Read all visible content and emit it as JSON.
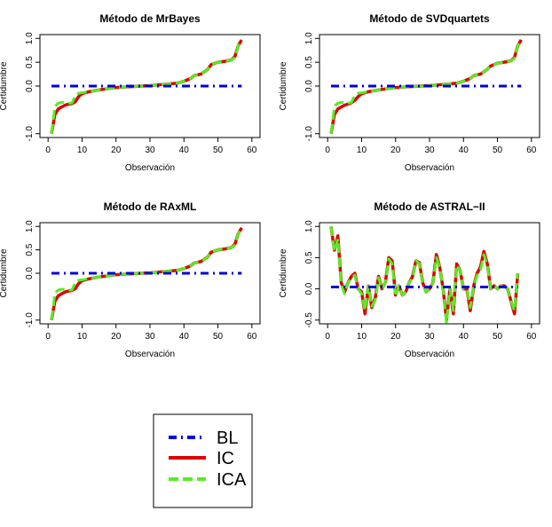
{
  "chart_data": [
    {
      "type": "line",
      "title": "Método de MrBayes",
      "xlabel": "Observación",
      "ylabel": "Certidumbre",
      "xlim": [
        0,
        60
      ],
      "ylim": [
        -1,
        1
      ],
      "xticks": [
        "0",
        "10",
        "20",
        "30",
        "40",
        "50",
        "60"
      ],
      "yticks": [
        "-1.0",
        "0.0",
        "0.5",
        "1.0"
      ],
      "ytick_values": [
        -1,
        0,
        0.5,
        1
      ],
      "series": [
        {
          "name": "BL",
          "x": [
            1,
            57
          ],
          "values": [
            0.0,
            0.0
          ]
        },
        {
          "name": "IC",
          "x": [
            1,
            1.5,
            2,
            3,
            4,
            5,
            6,
            7,
            8,
            9,
            10,
            12,
            15,
            18,
            20,
            25,
            30,
            35,
            38,
            40,
            42,
            43,
            45,
            47,
            48,
            50,
            52,
            54,
            55,
            56,
            57
          ],
          "values": [
            -1.0,
            -0.8,
            -0.6,
            -0.48,
            -0.44,
            -0.4,
            -0.38,
            -0.37,
            -0.33,
            -0.22,
            -0.16,
            -0.12,
            -0.08,
            -0.05,
            -0.03,
            -0.01,
            0.01,
            0.04,
            0.06,
            0.1,
            0.16,
            0.22,
            0.25,
            0.35,
            0.45,
            0.5,
            0.52,
            0.55,
            0.62,
            0.85,
            0.97
          ]
        },
        {
          "name": "ICA",
          "x": [
            1,
            1.5,
            2,
            3,
            4,
            5,
            6,
            7,
            8,
            9,
            10,
            12,
            15,
            18,
            20,
            25,
            30,
            35,
            38,
            40,
            42,
            43,
            45,
            47,
            48,
            50,
            52,
            54,
            55,
            56,
            57
          ],
          "values": [
            -1.0,
            -0.75,
            -0.42,
            -0.36,
            -0.34,
            -0.35,
            -0.36,
            -0.36,
            -0.2,
            -0.15,
            -0.14,
            -0.12,
            -0.08,
            -0.05,
            -0.03,
            -0.01,
            0.01,
            0.04,
            0.06,
            0.1,
            0.16,
            0.22,
            0.25,
            0.35,
            0.45,
            0.5,
            0.52,
            0.55,
            0.6,
            0.85,
            0.97
          ]
        }
      ]
    },
    {
      "type": "line",
      "title": "Método de SVDquartets",
      "xlabel": "Observación",
      "ylabel": "Certidumbre",
      "xlim": [
        0,
        60
      ],
      "ylim": [
        -1,
        1
      ],
      "xticks": [
        "0",
        "10",
        "20",
        "30",
        "40",
        "50",
        "60"
      ],
      "yticks": [
        "-1.0",
        "0.0",
        "0.5",
        "1.0"
      ],
      "ytick_values": [
        -1,
        0,
        0.5,
        1
      ],
      "series": [
        {
          "name": "BL",
          "x": [
            1,
            57
          ],
          "values": [
            0.0,
            0.0
          ]
        },
        {
          "name": "IC",
          "x": [
            1,
            1.5,
            2,
            3,
            4,
            5,
            6,
            7,
            8,
            9,
            10,
            12,
            15,
            18,
            20,
            25,
            30,
            35,
            38,
            40,
            42,
            43,
            45,
            47,
            48,
            50,
            52,
            54,
            55,
            56,
            57
          ],
          "values": [
            -1.0,
            -0.8,
            -0.6,
            -0.48,
            -0.44,
            -0.4,
            -0.38,
            -0.35,
            -0.3,
            -0.22,
            -0.16,
            -0.12,
            -0.08,
            -0.05,
            -0.03,
            -0.01,
            0.01,
            0.04,
            0.06,
            0.1,
            0.16,
            0.22,
            0.25,
            0.35,
            0.42,
            0.48,
            0.5,
            0.53,
            0.6,
            0.85,
            0.97
          ]
        },
        {
          "name": "ICA",
          "x": [
            1,
            1.5,
            2,
            3,
            4,
            5,
            6,
            7,
            8,
            9,
            10,
            12,
            15,
            18,
            20,
            25,
            30,
            35,
            38,
            40,
            42,
            43,
            45,
            47,
            48,
            50,
            52,
            54,
            55,
            56,
            57
          ],
          "values": [
            -1.0,
            -0.75,
            -0.42,
            -0.36,
            -0.34,
            -0.35,
            -0.36,
            -0.34,
            -0.2,
            -0.15,
            -0.14,
            -0.12,
            -0.08,
            -0.05,
            -0.03,
            -0.01,
            0.01,
            0.04,
            0.06,
            0.1,
            0.16,
            0.22,
            0.25,
            0.35,
            0.42,
            0.48,
            0.5,
            0.53,
            0.58,
            0.85,
            0.97
          ]
        }
      ]
    },
    {
      "type": "line",
      "title": "Método de RAxML",
      "xlabel": "Observación",
      "ylabel": "Certidumbre",
      "xlim": [
        0,
        60
      ],
      "ylim": [
        -1,
        1
      ],
      "xticks": [
        "0",
        "10",
        "20",
        "30",
        "40",
        "50",
        "60"
      ],
      "yticks": [
        "-1.0",
        "0.0",
        "0.5",
        "1.0"
      ],
      "ytick_values": [
        -1,
        0,
        0.5,
        1
      ],
      "series": [
        {
          "name": "BL",
          "x": [
            1,
            57
          ],
          "values": [
            0.0,
            0.0
          ]
        },
        {
          "name": "IC",
          "x": [
            1,
            1.5,
            2,
            3,
            4,
            5,
            6,
            7,
            8,
            9,
            10,
            12,
            15,
            18,
            20,
            25,
            30,
            35,
            38,
            40,
            42,
            43,
            45,
            47,
            48,
            50,
            52,
            54,
            55,
            56,
            57
          ],
          "values": [
            -1.0,
            -0.8,
            -0.6,
            -0.48,
            -0.44,
            -0.4,
            -0.38,
            -0.37,
            -0.33,
            -0.22,
            -0.16,
            -0.12,
            -0.08,
            -0.05,
            -0.03,
            -0.01,
            0.01,
            0.04,
            0.06,
            0.1,
            0.16,
            0.22,
            0.25,
            0.35,
            0.45,
            0.5,
            0.52,
            0.55,
            0.62,
            0.85,
            0.97
          ]
        },
        {
          "name": "ICA",
          "x": [
            1,
            1.5,
            2,
            3,
            4,
            5,
            6,
            7,
            8,
            9,
            10,
            12,
            15,
            18,
            20,
            25,
            30,
            35,
            38,
            40,
            42,
            43,
            45,
            47,
            48,
            50,
            52,
            54,
            55,
            56,
            57
          ],
          "values": [
            -1.0,
            -0.75,
            -0.42,
            -0.36,
            -0.34,
            -0.35,
            -0.36,
            -0.36,
            -0.2,
            -0.15,
            -0.14,
            -0.12,
            -0.08,
            -0.05,
            -0.03,
            -0.01,
            0.01,
            0.04,
            0.06,
            0.1,
            0.16,
            0.22,
            0.25,
            0.35,
            0.45,
            0.5,
            0.52,
            0.55,
            0.6,
            0.85,
            0.97
          ]
        }
      ]
    },
    {
      "type": "line",
      "title": "Método de ASTRAL−II",
      "xlabel": "Observación",
      "ylabel": "Certidumbre",
      "xlim": [
        0,
        60
      ],
      "ylim": [
        -0.5,
        1
      ],
      "xticks": [
        "0",
        "10",
        "20",
        "30",
        "40",
        "50",
        "60"
      ],
      "yticks": [
        "-0.5",
        "0.0",
        "0.5",
        "1.0"
      ],
      "ytick_values": [
        -0.5,
        0,
        0.5,
        1
      ],
      "series": [
        {
          "name": "BL",
          "x": [
            1,
            56
          ],
          "values": [
            0.03,
            0.03
          ]
        },
        {
          "name": "IC",
          "x": [
            1,
            2,
            3,
            4,
            5,
            6,
            7,
            8,
            9,
            10,
            11,
            12,
            13,
            14,
            15,
            16,
            17,
            18,
            19,
            20,
            21,
            22,
            23,
            24,
            25,
            26,
            27,
            28,
            29,
            30,
            31,
            32,
            33,
            34,
            35,
            36,
            37,
            38,
            39,
            40,
            41,
            42,
            43,
            44,
            45,
            46,
            47,
            48,
            49,
            50,
            51,
            52,
            53,
            54,
            55,
            56
          ],
          "values": [
            1.0,
            0.62,
            0.85,
            0.1,
            -0.05,
            0.1,
            0.2,
            0.25,
            0.0,
            -0.05,
            -0.4,
            0.05,
            -0.3,
            -0.15,
            0.2,
            0.0,
            0.1,
            0.5,
            0.45,
            -0.1,
            0.05,
            -0.1,
            -0.05,
            0.1,
            0.2,
            0.45,
            0.42,
            0.1,
            -0.05,
            0.0,
            0.1,
            0.55,
            0.35,
            0.0,
            -0.5,
            0.0,
            -0.4,
            0.4,
            0.3,
            0.0,
            0.0,
            -0.35,
            0.05,
            0.25,
            0.35,
            0.6,
            0.4,
            0.0,
            0.05,
            0.0,
            0.05,
            0.05,
            0.0,
            -0.2,
            -0.4,
            0.25
          ]
        },
        {
          "name": "ICA",
          "x": [
            1,
            2,
            3,
            4,
            5,
            6,
            7,
            8,
            9,
            10,
            11,
            12,
            13,
            14,
            15,
            16,
            17,
            18,
            19,
            20,
            21,
            22,
            23,
            24,
            25,
            26,
            27,
            28,
            29,
            30,
            31,
            32,
            33,
            34,
            35,
            36,
            37,
            38,
            39,
            40,
            41,
            42,
            43,
            44,
            45,
            46,
            47,
            48,
            49,
            50,
            51,
            52,
            53,
            54,
            55,
            56
          ],
          "values": [
            1.0,
            0.6,
            0.8,
            0.08,
            -0.08,
            0.1,
            0.18,
            0.22,
            0.0,
            -0.08,
            -0.35,
            0.05,
            -0.28,
            -0.18,
            0.18,
            0.0,
            0.1,
            0.48,
            0.4,
            -0.12,
            0.05,
            -0.1,
            -0.05,
            0.1,
            0.18,
            0.45,
            0.4,
            0.08,
            -0.05,
            0.0,
            0.1,
            0.5,
            0.35,
            0.0,
            -0.55,
            0.0,
            -0.35,
            0.38,
            0.3,
            0.0,
            0.0,
            -0.3,
            0.05,
            0.22,
            0.3,
            0.55,
            0.38,
            0.0,
            0.05,
            0.0,
            0.05,
            0.05,
            0.0,
            -0.2,
            -0.35,
            0.25
          ]
        }
      ]
    }
  ],
  "legend": {
    "items": [
      {
        "label": "BL",
        "color": "#0000dd",
        "style": "dotdash"
      },
      {
        "label": "IC",
        "color": "#dd0000",
        "style": "solid"
      },
      {
        "label": "ICA",
        "color": "#55ee22",
        "style": "dashed"
      }
    ]
  },
  "colors": {
    "BL": "#0000dd",
    "IC": "#dd0000",
    "ICA": "#55ee22"
  }
}
